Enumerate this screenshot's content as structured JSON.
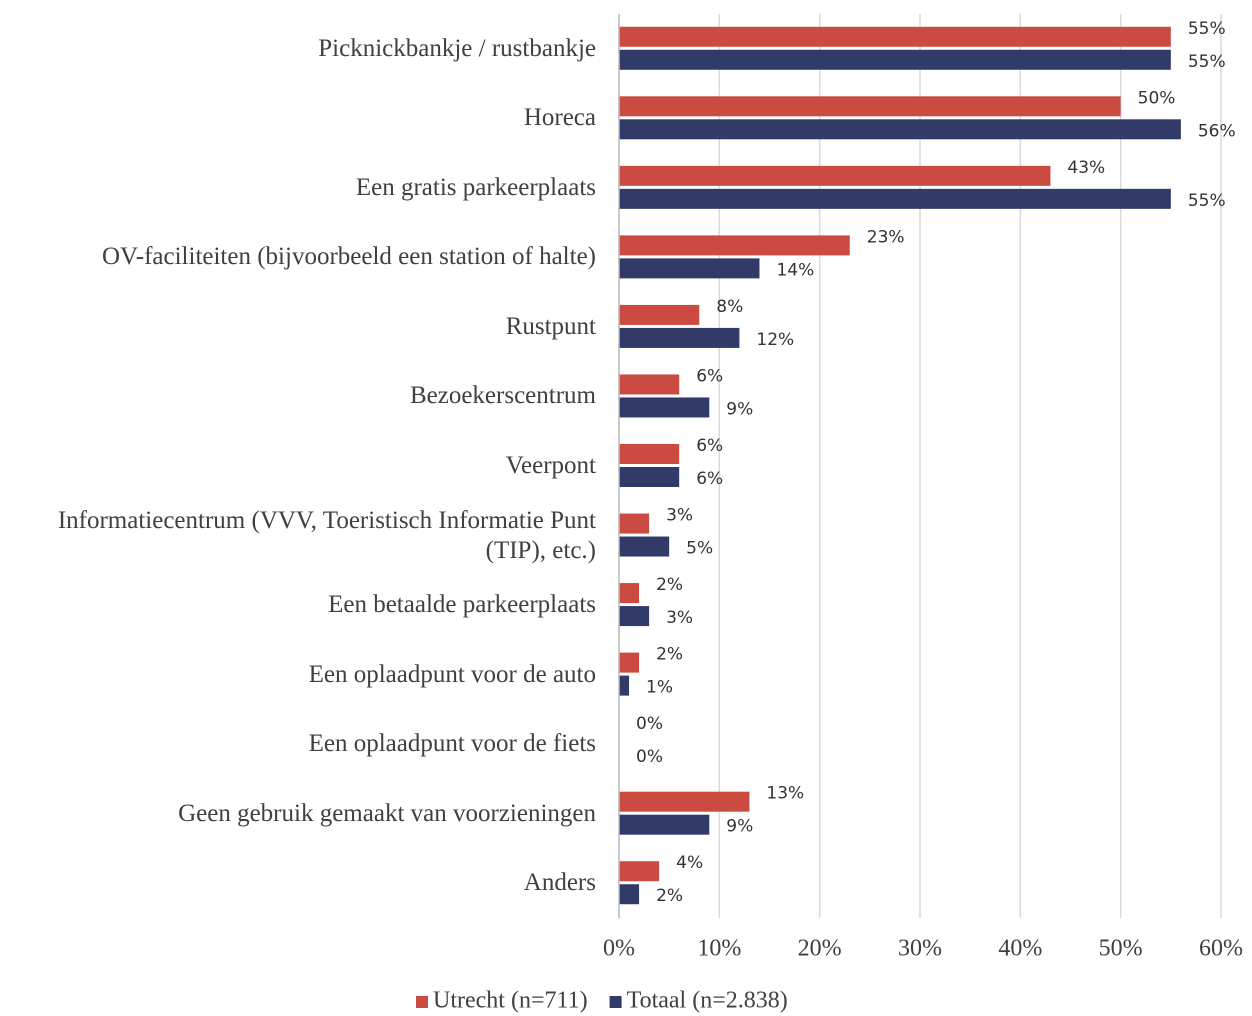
{
  "chart_data": {
    "type": "hbar",
    "categories": [
      "Picknickbankje / rustbankje",
      "Horeca",
      "Een gratis parkeerplaats",
      "OV-faciliteiten (bijvoorbeeld een station of halte)",
      "Rustpunt",
      "Bezoekerscentrum",
      "Veerpont",
      "Informatiecentrum (VVV, Toeristisch Informatie Punt (TIP), etc.)",
      "Een betaalde parkeerplaats",
      "Een oplaadpunt voor de auto",
      "Een oplaadpunt voor de fiets",
      "Geen gebruik gemaakt van voorzieningen",
      "Anders"
    ],
    "series": [
      {
        "name": "Utrecht (n=711)",
        "color": "#cb4b43",
        "values": [
          55,
          50,
          43,
          23,
          8,
          6,
          6,
          3,
          2,
          2,
          0,
          13,
          4
        ],
        "value_labels": [
          "55%",
          "50%",
          "43%",
          "23%",
          "8%",
          "6%",
          "6%",
          "3%",
          "2%",
          "2%",
          "0%",
          "13%",
          "4%"
        ]
      },
      {
        "name": "Totaal (n=2.838)",
        "color": "#323a68",
        "values": [
          55,
          56,
          55,
          14,
          12,
          9,
          6,
          5,
          3,
          1,
          0,
          9,
          2
        ],
        "value_labels": [
          "55%",
          "56%",
          "55%",
          "14%",
          "12%",
          "9%",
          "6%",
          "5%",
          "3%",
          "1%",
          "0%",
          "9%",
          "2%"
        ]
      }
    ],
    "xlim": [
      0,
      60
    ],
    "xticks": [
      {
        "value": 0,
        "label": "0%"
      },
      {
        "value": 10,
        "label": "10%"
      },
      {
        "value": 20,
        "label": "20%"
      },
      {
        "value": 30,
        "label": "30%"
      },
      {
        "value": 40,
        "label": "40%"
      },
      {
        "value": 50,
        "label": "50%"
      },
      {
        "value": 60,
        "label": "60%"
      }
    ],
    "grid": true,
    "legend": "bottom"
  }
}
